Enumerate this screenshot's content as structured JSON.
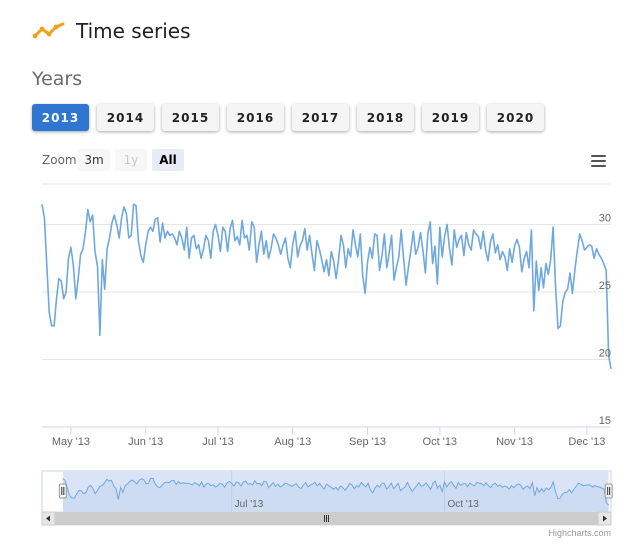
{
  "app": {
    "title": "Time series",
    "logo_icon": "line-chart-icon",
    "logo_color": "#f0a01c"
  },
  "years_section": {
    "title": "Years"
  },
  "year_buttons": [
    "2013",
    "2014",
    "2015",
    "2016",
    "2017",
    "2018",
    "2019",
    "2020"
  ],
  "selected_year": "2013",
  "range_selector": {
    "label": "Zoom",
    "buttons": [
      {
        "label": "3m",
        "state": "normal"
      },
      {
        "label": "1y",
        "state": "disabled"
      },
      {
        "label": "All",
        "state": "selected"
      }
    ]
  },
  "menu_icon": "hamburger-menu-icon",
  "credits": "Highcharts.com",
  "chart_data": {
    "type": "line",
    "title": "",
    "xlabel": "",
    "ylabel": "",
    "ylim": [
      15,
      33
    ],
    "yticks": [
      15,
      20,
      25,
      30
    ],
    "ytick_labels": [
      "15",
      "20",
      "25",
      "30"
    ],
    "xlim": [
      "2013-04-19",
      "2013-12-11"
    ],
    "x_ticks": [
      "2013-05-01",
      "2013-06-01",
      "2013-07-01",
      "2013-08-01",
      "2013-09-01",
      "2013-10-01",
      "2013-11-01",
      "2013-12-01"
    ],
    "x_tick_labels": [
      "May '13",
      "Jun '13",
      "Jul '13",
      "Aug '13",
      "Sep '13",
      "Oct '13",
      "Nov '13",
      "Dec '13"
    ],
    "grid": true,
    "series_color": "#6ea8df",
    "x_start": "2013-04-19",
    "x_step_days": 1,
    "values": [
      31.5,
      30.5,
      27,
      23.5,
      22.5,
      22.5,
      24.5,
      26,
      25.8,
      24.5,
      25,
      27.5,
      28.3,
      27,
      24.5,
      26,
      27.8,
      28.2,
      29.4,
      31.1,
      30.2,
      30.7,
      28,
      26.9,
      21.8,
      27.4,
      25.2,
      28.2,
      29,
      30.1,
      30.7,
      30,
      29,
      30.5,
      31.3,
      30.8,
      29,
      29.2,
      31.5,
      31.4,
      28.8,
      27.7,
      27.2,
      28.5,
      29.5,
      29.8,
      29.5,
      30.4,
      30.5,
      28.7,
      30.1,
      29,
      29.5,
      29.2,
      29.3,
      29,
      28.5,
      29.5,
      29,
      28.1,
      29.8,
      27.5,
      29,
      29.2,
      28.2,
      28.5,
      27.5,
      28.2,
      29.2,
      28.8,
      27.5,
      29.5,
      30,
      29.2,
      28,
      29.8,
      29.5,
      28,
      29.7,
      30.3,
      28.8,
      29.1,
      28.5,
      30.3,
      29,
      29.2,
      28.1,
      30.2,
      29.8,
      27.2,
      28.5,
      29.5,
      27.8,
      28.8,
      27.5,
      28.2,
      29.3,
      29,
      28.5,
      27.8,
      28.5,
      29,
      27.5,
      26.8,
      28.5,
      29.5,
      27.6,
      28.4,
      28.8,
      29.7,
      28.1,
      29.2,
      27.8,
      26.6,
      28.8,
      28.2,
      27.4,
      26.5,
      27.4,
      26.2,
      28,
      27.3,
      26,
      27.4,
      29.2,
      28.5,
      26.8,
      28.2,
      27.6,
      29.6,
      28.5,
      27.6,
      29.3,
      26.2,
      24.9,
      27.2,
      28.3,
      27.5,
      29.3,
      29.2,
      26.6,
      27.7,
      29.3,
      26.8,
      27.9,
      29.2,
      25.9,
      26.8,
      27.6,
      29.6,
      27.4,
      25.5,
      26.9,
      28.1,
      29.5,
      27.8,
      28.3,
      29.4,
      28.1,
      26.4,
      29.3,
      30.2,
      27.1,
      28.4,
      25.6,
      29.8,
      27.6,
      29.1,
      30,
      28.2,
      27,
      29.6,
      28.3,
      28.9,
      29.2,
      27.7,
      29.4,
      28.5,
      28.1,
      29.6,
      29.3,
      29.1,
      28.2,
      29.5,
      28.1,
      27.3,
      28.7,
      29.3,
      27.9,
      28.5,
      27.4,
      28,
      27.6,
      26.6,
      28.2,
      27.2,
      28.4,
      28.9,
      28.3,
      26.5,
      27.5,
      28,
      26.8,
      29.6,
      23.6,
      27.3,
      25.1,
      26.8,
      25.3,
      27.1,
      26.3,
      27.4,
      29.8,
      25.5,
      22.3,
      22.5,
      24.3,
      25,
      25.2,
      26.4,
      24.9,
      26.6,
      28,
      29.3,
      28.8,
      28.1,
      28.3,
      28.5,
      28.4,
      27.5,
      28.2,
      27.8,
      27.5,
      27.1,
      26.6,
      20.3,
      19.3
    ]
  }
}
